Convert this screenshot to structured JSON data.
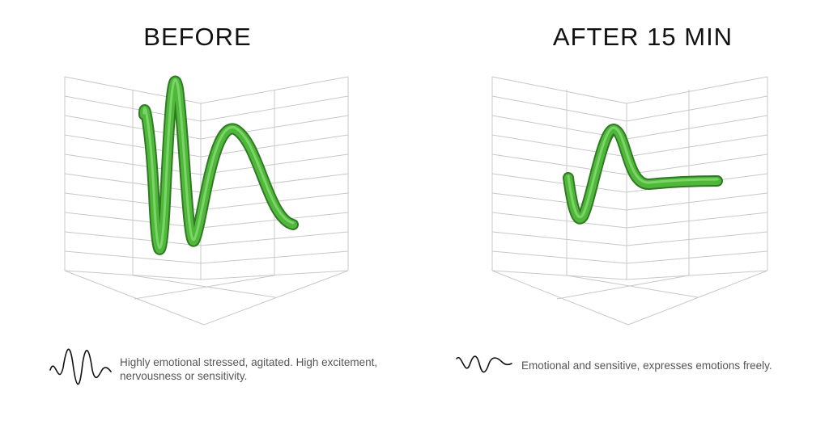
{
  "panels": [
    {
      "title": "BEFORE",
      "caption": "Highly emotional stressed, agitated. High excitement, nervousness or sensitivity.",
      "icon": "high-amplitude-wave-icon"
    },
    {
      "title": "AFTER 15 MIN",
      "caption": "Emotional and sensitive, expresses emotions freely.",
      "icon": "low-amplitude-wave-icon"
    }
  ],
  "colors": {
    "wave": "#4fb83a",
    "wave_edge": "#2f7a22",
    "grid": "#c8c8c8",
    "title": "#111111",
    "caption": "#555555"
  }
}
